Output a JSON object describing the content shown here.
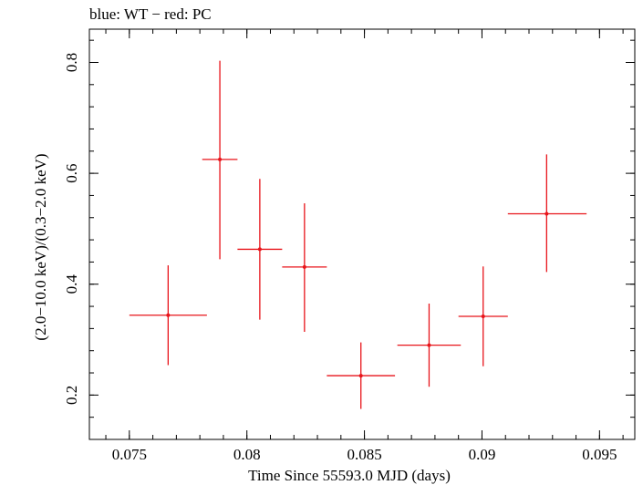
{
  "chart_data": {
    "type": "scatter",
    "title": "blue: WT − red: PC",
    "xlabel": "Time Since 55593.0 MJD (days)",
    "ylabel": "(2.0−10.0 keV)/(0.3−2.0 keV)",
    "xlim": [
      0.0733,
      0.0965
    ],
    "ylim": [
      0.12,
      0.86
    ],
    "x_ticks": [
      0.075,
      0.08,
      0.085,
      0.09,
      0.095
    ],
    "x_tick_labels": [
      "0.075",
      "0.08",
      "0.085",
      "0.09",
      "0.095"
    ],
    "y_ticks": [
      0.2,
      0.4,
      0.6,
      0.8
    ],
    "y_tick_labels": [
      "0.2",
      "0.4",
      "0.6",
      "0.8"
    ],
    "grid": false,
    "series": [
      {
        "color": "#e8141a",
        "points": [
          {
            "x": 0.07665,
            "y": 0.344,
            "xerr_lo": 0.00165,
            "xerr_hi": 0.00165,
            "yerr_lo": 0.09,
            "yerr_hi": 0.09
          },
          {
            "x": 0.07885,
            "y": 0.625,
            "xerr_lo": 0.00075,
            "xerr_hi": 0.00075,
            "yerr_lo": 0.18,
            "yerr_hi": 0.178
          },
          {
            "x": 0.08055,
            "y": 0.463,
            "xerr_lo": 0.00095,
            "xerr_hi": 0.00095,
            "yerr_lo": 0.127,
            "yerr_hi": 0.127
          },
          {
            "x": 0.08245,
            "y": 0.431,
            "xerr_lo": 0.00095,
            "xerr_hi": 0.00095,
            "yerr_lo": 0.117,
            "yerr_hi": 0.115
          },
          {
            "x": 0.08485,
            "y": 0.235,
            "xerr_lo": 0.00145,
            "xerr_hi": 0.00145,
            "yerr_lo": 0.06,
            "yerr_hi": 0.06
          },
          {
            "x": 0.08775,
            "y": 0.29,
            "xerr_lo": 0.00135,
            "xerr_hi": 0.00135,
            "yerr_lo": 0.075,
            "yerr_hi": 0.075
          },
          {
            "x": 0.09005,
            "y": 0.342,
            "xerr_lo": 0.00105,
            "xerr_hi": 0.00105,
            "yerr_lo": 0.09,
            "yerr_hi": 0.09
          },
          {
            "x": 0.09275,
            "y": 0.527,
            "xerr_lo": 0.00165,
            "xerr_hi": 0.0017,
            "yerr_lo": 0.105,
            "yerr_hi": 0.107
          }
        ]
      }
    ]
  }
}
